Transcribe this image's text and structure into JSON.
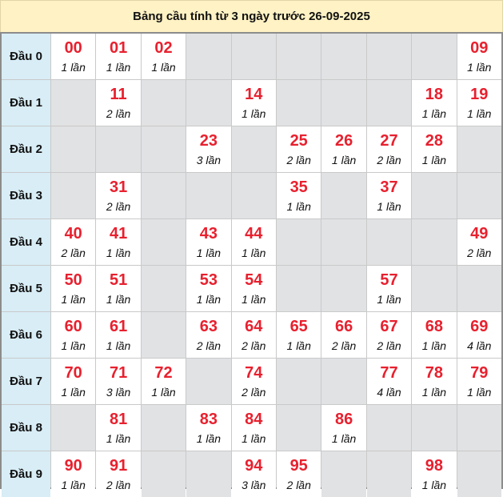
{
  "title": "Bảng cầu tính từ 3 ngày trước 26-09-2025",
  "count_suffix": "lần",
  "colors": {
    "number": "#e8202e",
    "header_bg": "#fff2c4",
    "row_head_bg": "#d8edf6",
    "empty_cell": "#e1e2e4"
  },
  "rows": [
    {
      "label": "Đầu 0",
      "cells": [
        {
          "num": "00",
          "count": "1 lần"
        },
        {
          "num": "01",
          "count": "1 lần"
        },
        {
          "num": "02",
          "count": "1 lần"
        },
        null,
        null,
        null,
        null,
        null,
        null,
        {
          "num": "09",
          "count": "1 lần"
        }
      ]
    },
    {
      "label": "Đầu 1",
      "cells": [
        null,
        {
          "num": "11",
          "count": "2 lần"
        },
        null,
        null,
        {
          "num": "14",
          "count": "1 lần"
        },
        null,
        null,
        null,
        {
          "num": "18",
          "count": "1 lần"
        },
        {
          "num": "19",
          "count": "1 lần"
        }
      ]
    },
    {
      "label": "Đầu 2",
      "cells": [
        null,
        null,
        null,
        {
          "num": "23",
          "count": "3 lần"
        },
        null,
        {
          "num": "25",
          "count": "2 lần"
        },
        {
          "num": "26",
          "count": "1 lần"
        },
        {
          "num": "27",
          "count": "2 lần"
        },
        {
          "num": "28",
          "count": "1 lần"
        },
        null
      ]
    },
    {
      "label": "Đầu 3",
      "cells": [
        null,
        {
          "num": "31",
          "count": "2 lần"
        },
        null,
        null,
        null,
        {
          "num": "35",
          "count": "1 lần"
        },
        null,
        {
          "num": "37",
          "count": "1 lần"
        },
        null,
        null
      ]
    },
    {
      "label": "Đầu 4",
      "cells": [
        {
          "num": "40",
          "count": "2 lần"
        },
        {
          "num": "41",
          "count": "1 lần"
        },
        null,
        {
          "num": "43",
          "count": "1 lần"
        },
        {
          "num": "44",
          "count": "1 lần"
        },
        null,
        null,
        null,
        null,
        {
          "num": "49",
          "count": "2 lần"
        }
      ]
    },
    {
      "label": "Đầu 5",
      "cells": [
        {
          "num": "50",
          "count": "1 lần"
        },
        {
          "num": "51",
          "count": "1 lần"
        },
        null,
        {
          "num": "53",
          "count": "1 lần"
        },
        {
          "num": "54",
          "count": "1 lần"
        },
        null,
        null,
        {
          "num": "57",
          "count": "1 lần"
        },
        null,
        null
      ]
    },
    {
      "label": "Đầu 6",
      "cells": [
        {
          "num": "60",
          "count": "1 lần"
        },
        {
          "num": "61",
          "count": "1 lần"
        },
        null,
        {
          "num": "63",
          "count": "2 lần"
        },
        {
          "num": "64",
          "count": "2 lần"
        },
        {
          "num": "65",
          "count": "1 lần"
        },
        {
          "num": "66",
          "count": "2 lần"
        },
        {
          "num": "67",
          "count": "2 lần"
        },
        {
          "num": "68",
          "count": "1 lần"
        },
        {
          "num": "69",
          "count": "4 lần"
        }
      ]
    },
    {
      "label": "Đầu 7",
      "cells": [
        {
          "num": "70",
          "count": "1 lần"
        },
        {
          "num": "71",
          "count": "3 lần"
        },
        {
          "num": "72",
          "count": "1 lần"
        },
        null,
        {
          "num": "74",
          "count": "2 lần"
        },
        null,
        null,
        {
          "num": "77",
          "count": "4 lần"
        },
        {
          "num": "78",
          "count": "1 lần"
        },
        {
          "num": "79",
          "count": "1 lần"
        }
      ]
    },
    {
      "label": "Đầu 8",
      "cells": [
        null,
        {
          "num": "81",
          "count": "1 lần"
        },
        null,
        {
          "num": "83",
          "count": "1 lần"
        },
        {
          "num": "84",
          "count": "1 lần"
        },
        null,
        {
          "num": "86",
          "count": "1 lần"
        },
        null,
        null,
        null
      ]
    },
    {
      "label": "Đầu 9",
      "cells": [
        {
          "num": "90",
          "count": "1 lần"
        },
        {
          "num": "91",
          "count": "2 lần"
        },
        null,
        null,
        {
          "num": "94",
          "count": "3 lần"
        },
        {
          "num": "95",
          "count": "2 lần"
        },
        null,
        null,
        {
          "num": "98",
          "count": "1 lần"
        },
        null
      ]
    }
  ]
}
